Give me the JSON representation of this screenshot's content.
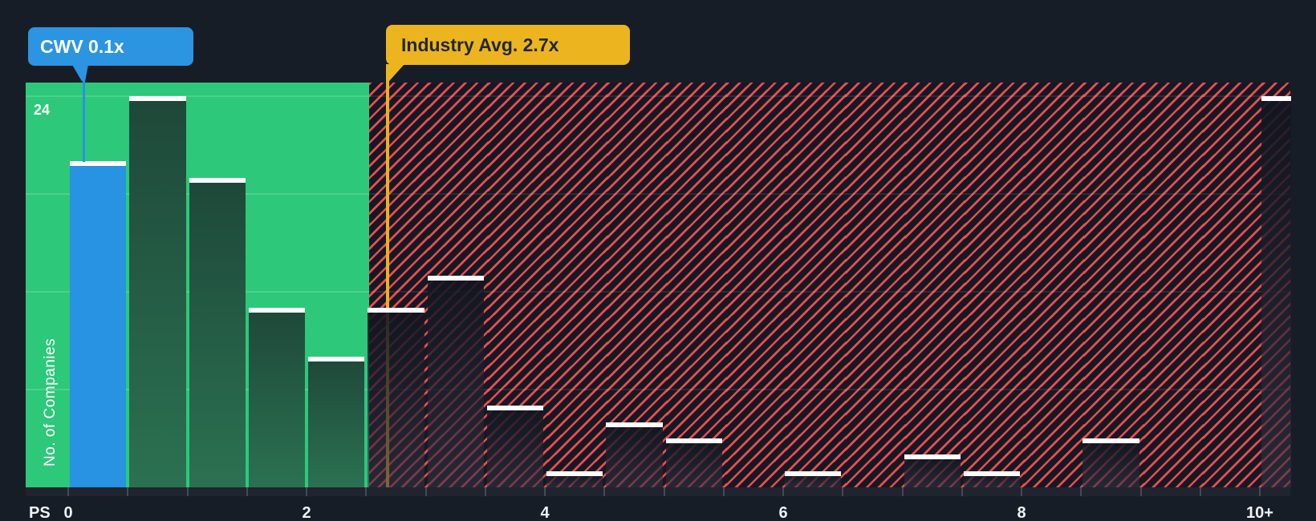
{
  "chart_data": {
    "type": "bar",
    "title": "Price to Sales histogram with company vs industry average markers",
    "xlabel": "PS",
    "ylabel": "No. of Companies",
    "categories": [
      "0-0.5",
      "0.5-1",
      "1-1.5",
      "1.5-2",
      "2-2.5",
      "2.5-3",
      "3-3.5",
      "3.5-4",
      "4-4.5",
      "4.5-5",
      "5-5.5",
      "5.5-6",
      "6-6.5",
      "6.5-7",
      "7-7.5",
      "7.5-8",
      "8-8.5",
      "8.5-9",
      "9-9.5",
      "9.5-10",
      "10+"
    ],
    "values": [
      20,
      24,
      19,
      11,
      8,
      11,
      13,
      5,
      1,
      4,
      3,
      0,
      1,
      0,
      2,
      1,
      0,
      3,
      0,
      0,
      24
    ],
    "x_tick_labels": [
      "0",
      "2",
      "4",
      "6",
      "8",
      "10+"
    ],
    "x_tick_values": [
      0,
      2,
      4,
      6,
      8,
      10
    ],
    "minor_tick_step": 0.5,
    "ylim": [
      0,
      25
    ],
    "grid_values": [
      6,
      12,
      18,
      24
    ],
    "y_max_label": "24",
    "legend_position": "none",
    "grid": "horizontal",
    "company_marker": {
      "label": "CWV 0.1x",
      "value": 0.1
    },
    "industry_marker": {
      "label": "Industry Avg. 2.7x",
      "value": 2.7
    },
    "highlight_bar_index": 0,
    "zones": {
      "below_industry_avg": "green",
      "above_industry_avg": "red-hatched"
    }
  },
  "colors": {
    "background": "#171d27",
    "green_zone": "#2dc87a",
    "green_bar_top": "#1e4839",
    "green_bar_bottom": "#2b7151",
    "company_blue": "#2793e2",
    "callout_blue": "#2b95e2",
    "industry_yellow": "#ecb41f",
    "hatch_stripe_red": "#ee4b50",
    "hatch_background": "#141923",
    "bar_cap_white": "#ffffff",
    "axis_tick": "#434a57",
    "label_white": "#f0f2f5"
  }
}
